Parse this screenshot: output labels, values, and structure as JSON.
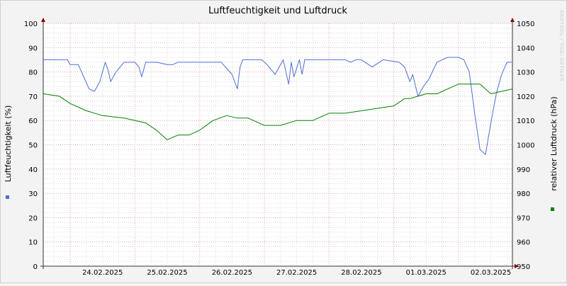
{
  "chart_data": {
    "type": "line",
    "title": "Luftfeuchtigkeit und Luftdruck",
    "watermark": "RRDTOOL / TOBI OETIKER",
    "ylabel": "Luftfeuchtigkeit (%)",
    "y2label": "relativer Luftdruck (hPa)",
    "ylim": [
      0,
      100
    ],
    "y2lim": [
      950,
      1050
    ],
    "yticks": [
      0,
      10,
      20,
      30,
      40,
      50,
      60,
      70,
      80,
      90,
      100
    ],
    "y2ticks": [
      950,
      960,
      970,
      980,
      990,
      1000,
      1010,
      1020,
      1030,
      1040,
      1050
    ],
    "xlim": [
      "2025-02-23T14:00",
      "2025-03-02T20:00"
    ],
    "xticks": [
      "24.02.2025",
      "25.02.2025",
      "26.02.2025",
      "27.02.2025",
      "28.02.2025",
      "01.03.2025",
      "02.03.2025"
    ],
    "grid": true,
    "legend": "none",
    "series": [
      {
        "axis": "left",
        "color": "#4f6ed2",
        "x": [
          "2025-02-23T14:00",
          "2025-02-23T20:00",
          "2025-02-23T23:00",
          "2025-02-24T00:00",
          "2025-02-24T03:00",
          "2025-02-24T05:00",
          "2025-02-24T07:00",
          "2025-02-24T09:00",
          "2025-02-24T11:00",
          "2025-02-24T13:00",
          "2025-02-24T14:00",
          "2025-02-24T15:00",
          "2025-02-24T17:00",
          "2025-02-24T20:00",
          "2025-02-25T00:00",
          "2025-02-25T01:30",
          "2025-02-25T02:30",
          "2025-02-25T04:00",
          "2025-02-25T08:00",
          "2025-02-25T12:00",
          "2025-02-25T14:00",
          "2025-02-25T16:00",
          "2025-02-25T18:00",
          "2025-02-26T00:00",
          "2025-02-26T08:00",
          "2025-02-26T12:00",
          "2025-02-26T14:00",
          "2025-02-26T15:00",
          "2025-02-26T16:00",
          "2025-02-26T20:00",
          "2025-02-26T23:00",
          "2025-02-27T01:00",
          "2025-02-27T04:00",
          "2025-02-27T07:00",
          "2025-02-27T09:00",
          "2025-02-27T10:00",
          "2025-02-27T11:00",
          "2025-02-27T13:00",
          "2025-02-27T14:00",
          "2025-02-27T15:00",
          "2025-02-27T17:00",
          "2025-02-28T00:00",
          "2025-02-28T06:00",
          "2025-02-28T08:00",
          "2025-02-28T10:00",
          "2025-02-28T12:00",
          "2025-02-28T16:00",
          "2025-02-28T20:00",
          "2025-03-01T02:00",
          "2025-03-01T04:00",
          "2025-03-01T06:00",
          "2025-03-01T07:00",
          "2025-03-01T09:00",
          "2025-03-01T11:00",
          "2025-03-01T13:00",
          "2025-03-01T16:00",
          "2025-03-01T20:00",
          "2025-03-02T00:00",
          "2025-03-02T02:00",
          "2025-03-02T04:00",
          "2025-03-02T06:00",
          "2025-03-02T08:00",
          "2025-03-02T10:00",
          "2025-03-02T12:00",
          "2025-03-02T14:00",
          "2025-03-02T16:00",
          "2025-03-02T18:00",
          "2025-03-02T20:00"
        ],
        "values": [
          85,
          85,
          85,
          83,
          83,
          78,
          73,
          72,
          76,
          84,
          81,
          76,
          80,
          84,
          84,
          82,
          78,
          84,
          84,
          83,
          83,
          84,
          84,
          84,
          84,
          79,
          73,
          82,
          85,
          85,
          85,
          83,
          79,
          85,
          75,
          84,
          78,
          85,
          79,
          85,
          85,
          85,
          85,
          84,
          85,
          85,
          82,
          85,
          84,
          82,
          76,
          79,
          70,
          74,
          77,
          84,
          86,
          86,
          85,
          80,
          63,
          48,
          46,
          59,
          71,
          79,
          84,
          84
        ]
      },
      {
        "axis": "right",
        "color": "#008000",
        "x": [
          "2025-02-23T14:00",
          "2025-02-23T20:00",
          "2025-02-24T00:00",
          "2025-02-24T06:00",
          "2025-02-24T12:00",
          "2025-02-24T20:00",
          "2025-02-25T04:00",
          "2025-02-25T08:00",
          "2025-02-25T12:00",
          "2025-02-25T16:00",
          "2025-02-25T20:00",
          "2025-02-26T00:00",
          "2025-02-26T05:00",
          "2025-02-26T10:00",
          "2025-02-26T14:00",
          "2025-02-26T18:00",
          "2025-02-27T00:00",
          "2025-02-27T06:00",
          "2025-02-27T12:00",
          "2025-02-27T18:00",
          "2025-02-28T00:00",
          "2025-02-28T06:00",
          "2025-02-28T12:00",
          "2025-02-28T18:00",
          "2025-03-01T00:00",
          "2025-03-01T04:00",
          "2025-03-01T06:00",
          "2025-03-01T09:00",
          "2025-03-01T12:00",
          "2025-03-01T16:00",
          "2025-03-01T20:00",
          "2025-03-02T00:00",
          "2025-03-02T04:00",
          "2025-03-02T08:00",
          "2025-03-02T12:00",
          "2025-03-02T16:00",
          "2025-03-02T20:00"
        ],
        "values": [
          1021,
          1020,
          1017,
          1014,
          1012,
          1011,
          1009,
          1006,
          1002,
          1004,
          1004,
          1006,
          1010,
          1012,
          1011,
          1011,
          1008,
          1008,
          1010,
          1010,
          1013,
          1013,
          1014,
          1015,
          1016,
          1019,
          1019,
          1020,
          1021,
          1021,
          1023,
          1025,
          1025,
          1025,
          1021,
          1022,
          1023
        ]
      }
    ]
  }
}
